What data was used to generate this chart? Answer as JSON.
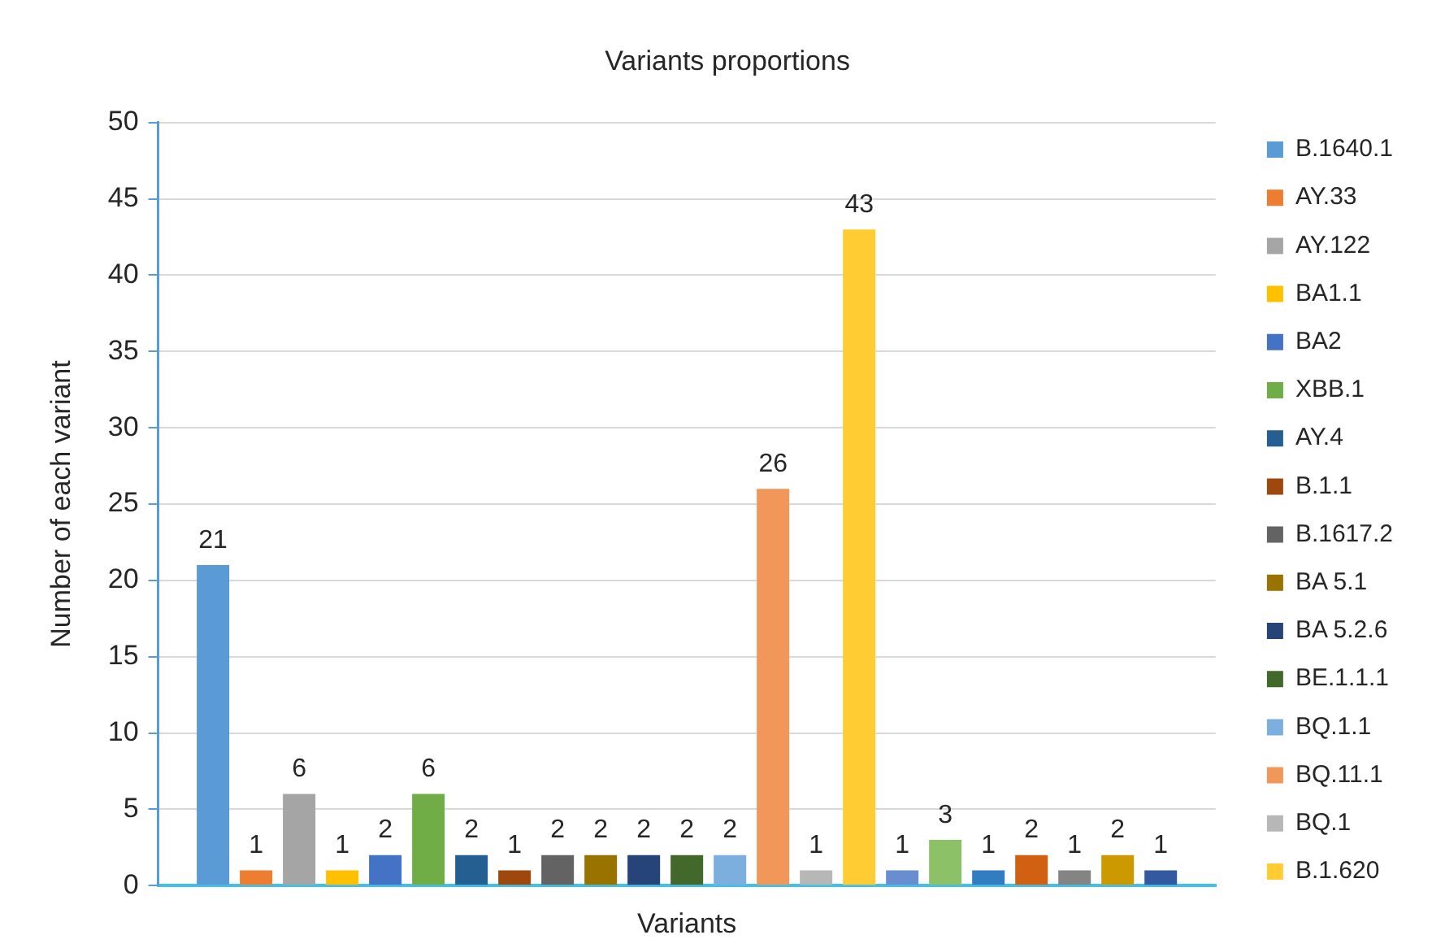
{
  "chart_data": {
    "type": "bar",
    "title": "Variants proportions",
    "xlabel": "Variants",
    "ylabel": "Number of each variant",
    "categories": [
      null
    ],
    "series": [
      {
        "name": "B.1640.1",
        "color": "#5b9bd5",
        "values": [
          21
        ]
      },
      {
        "name": "AY.33",
        "color": "#ed7d31",
        "values": [
          1
        ]
      },
      {
        "name": "AY.122",
        "color": "#a5a5a5",
        "values": [
          6
        ]
      },
      {
        "name": "BA1.1",
        "color": "#ffc000",
        "values": [
          1
        ]
      },
      {
        "name": "BA2",
        "color": "#4472c4",
        "values": [
          2
        ]
      },
      {
        "name": "XBB.1",
        "color": "#70ad47",
        "values": [
          6
        ]
      },
      {
        "name": "AY.4",
        "color": "#255e91",
        "values": [
          2
        ]
      },
      {
        "name": "B.1.1",
        "color": "#9e480e",
        "values": [
          1
        ]
      },
      {
        "name": "B.1617.2",
        "color": "#636363",
        "values": [
          2
        ]
      },
      {
        "name": "BA 5.1",
        "color": "#997300",
        "values": [
          2
        ]
      },
      {
        "name": "BA 5.2.6",
        "color": "#264478",
        "values": [
          2
        ]
      },
      {
        "name": "BE.1.1.1",
        "color": "#43682b",
        "values": [
          2
        ]
      },
      {
        "name": "BQ.1.1",
        "color": "#7cafdd",
        "values": [
          2
        ]
      },
      {
        "name": "BQ.11.1",
        "color": "#f1975a",
        "values": [
          26
        ]
      },
      {
        "name": "BQ.1",
        "color": "#b7b7b7",
        "values": [
          1
        ]
      },
      {
        "name": "B.1.620",
        "color": "#ffcd33",
        "values": [
          43
        ]
      },
      {
        "color": "#698ed0",
        "values": [
          1
        ]
      },
      {
        "color": "#8cc168",
        "values": [
          3
        ]
      },
      {
        "color": "#327dc2",
        "values": [
          1
        ]
      },
      {
        "color": "#d26012",
        "values": [
          2
        ]
      },
      {
        "color": "#848484",
        "values": [
          1
        ]
      },
      {
        "color": "#cc9a00",
        "values": [
          2
        ]
      },
      {
        "color": "#335aa1",
        "values": [
          1
        ]
      }
    ],
    "ylim": [
      0,
      50
    ],
    "yticks": [
      0,
      5,
      10,
      15,
      20,
      25,
      30,
      35,
      40,
      45,
      50
    ],
    "grid": "y",
    "legend": "right",
    "data_labels": true
  }
}
